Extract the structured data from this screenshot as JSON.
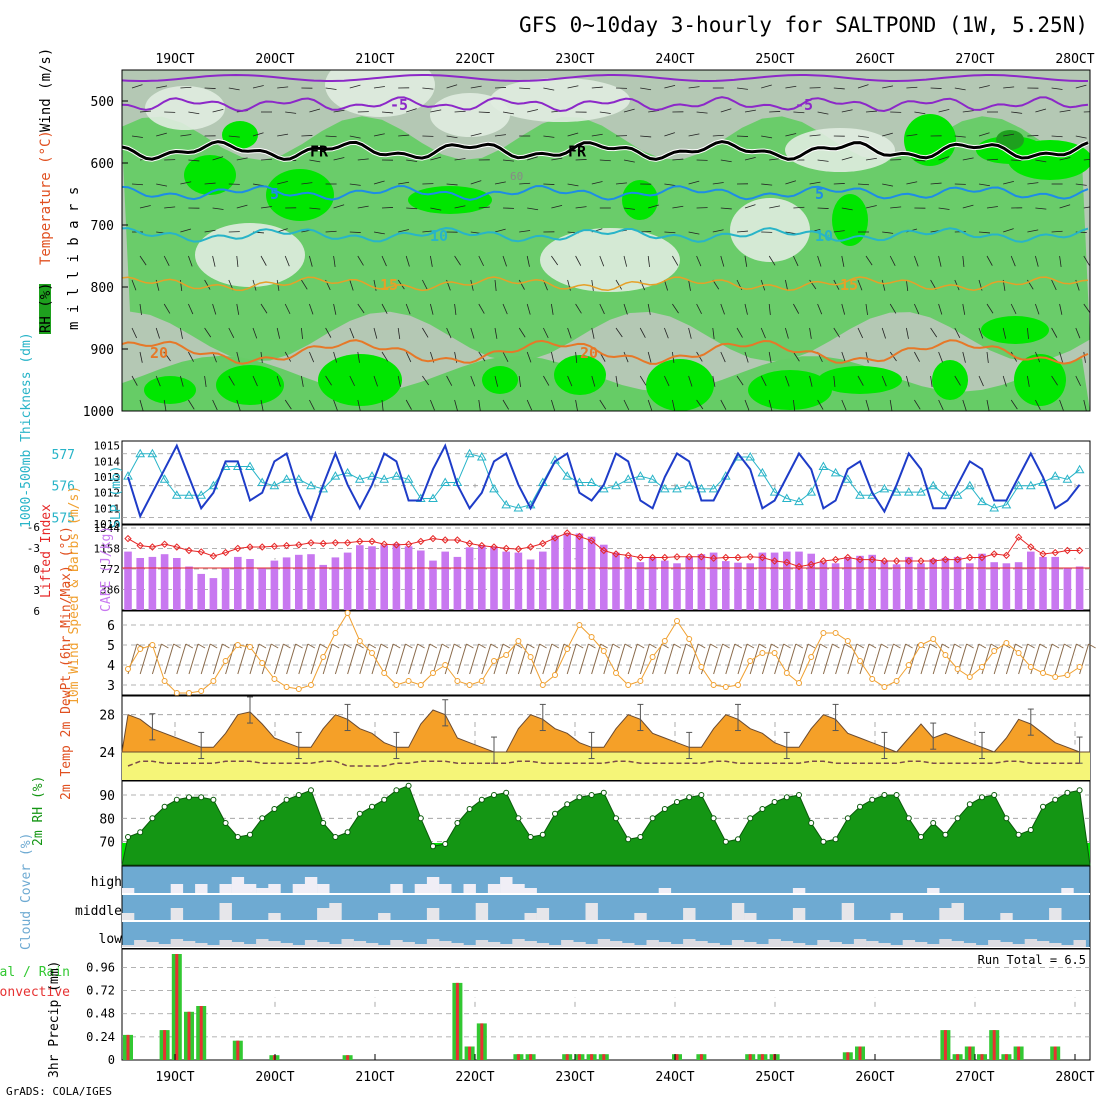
{
  "header": {
    "title": "GFS 0~10day 3-hourly for SALTPOND (1W, 5.25N)",
    "credit": "GrADS: COLA/IGES"
  },
  "colors": {
    "rh_dark": "#1ea01e",
    "rh_mid": "#66cc66",
    "rh_light": "#b4c8b4",
    "cape": "#c878f0",
    "lifted": "#e62828",
    "slp": "#1e3cc8",
    "thickness": "#28b4c8",
    "wind": "#f0a030",
    "temp": "#f5a028",
    "dewpt": "#f5f578",
    "rh2m": "#149614",
    "cloud": "#6eaad2",
    "rain": "#32c832",
    "conv": "#e63232"
  },
  "chart_data": [
    {
      "type": "heatmap",
      "name": "upper-air",
      "ylabel": "m i l l i b a r s",
      "legend_labels": [
        "Wind (m/s)",
        "Temperature (°C)",
        "RH (%)"
      ],
      "x_ticks": [
        "19OCT",
        "20OCT",
        "21OCT",
        "22OCT",
        "23OCT",
        "24OCT",
        "25OCT",
        "26OCT",
        "27OCT",
        "28OCT"
      ],
      "y_ticks": [
        500,
        600,
        700,
        800,
        900,
        1000
      ],
      "ylim": [
        450,
        1000
      ],
      "contour_labels": [
        "-5",
        "-5",
        "FR",
        "FR",
        "5",
        "5",
        "10",
        "10",
        "15",
        "15",
        "20",
        "20",
        "60"
      ],
      "isotherms": [
        {
          "label": "-5",
          "level": 505
        },
        {
          "label": "FR",
          "level": 580
        },
        {
          "label": "5",
          "level": 648
        },
        {
          "label": "10",
          "level": 716
        },
        {
          "label": "15",
          "level": 795
        },
        {
          "label": "20",
          "level": 905
        }
      ]
    },
    {
      "type": "line",
      "name": "slp-thickness",
      "ylabel_left": "1000-500mb Thickness (dm)",
      "ylabel_right": "SLP (mb)",
      "left_ticks": [
        575,
        576,
        577
      ],
      "right_ticks": [
        1010,
        1011,
        1012,
        1013,
        1014,
        1015
      ],
      "ylim_thickness": [
        574.8,
        577.4
      ],
      "ylim_slp": [
        1010,
        1015.3
      ],
      "series": [
        {
          "name": "SLP",
          "axis": "right",
          "values": [
            1013.0,
            1010.5,
            1012.0,
            1013.5,
            1015.0,
            1013.0,
            1011.0,
            1012.0,
            1014.0,
            1014.0,
            1011.5,
            1012.0,
            1014.0,
            1014.5,
            1012.0,
            1010.3,
            1012.5,
            1014.5,
            1012.5,
            1011.0,
            1012.5,
            1014.5,
            1014.0,
            1011.5,
            1011.5,
            1013.5,
            1015.0,
            1012.5,
            1011.0,
            1012.0,
            1014.0,
            1014.5,
            1012.5,
            1011.0,
            1012.5,
            1014.0,
            1014.5,
            1012.0,
            1011.5,
            1012.5,
            1014.5,
            1014.0,
            1011.5,
            1011.0,
            1013.0,
            1014.5,
            1014.0,
            1011.5,
            1011.5,
            1013.0,
            1014.5,
            1013.5,
            1011.0,
            1011.5,
            1013.0,
            1014.5,
            1013.5,
            1011.0,
            1011.5,
            1013.5,
            1014.0,
            1012.0,
            1010.8,
            1012.5,
            1014.5,
            1013.5,
            1011.0,
            1011.0,
            1012.5,
            1014.0,
            1013.5,
            1011.5,
            1011.5,
            1013.0,
            1014.5,
            1013.0,
            1011.0,
            1011.5,
            1012.5
          ]
        },
        {
          "name": "Thickness",
          "axis": "left",
          "values": [
            576.3,
            577.0,
            577.0,
            576.2,
            575.7,
            575.7,
            575.7,
            576.0,
            576.6,
            576.6,
            576.6,
            576.1,
            576.0,
            576.2,
            576.2,
            576.0,
            575.9,
            576.3,
            576.4,
            576.2,
            576.3,
            576.2,
            576.3,
            576.2,
            575.6,
            575.6,
            576.1,
            576.1,
            577.0,
            576.9,
            575.9,
            575.4,
            575.3,
            575.4,
            576.1,
            576.8,
            576.3,
            576.1,
            576.1,
            575.9,
            576.0,
            576.2,
            576.3,
            576.2,
            575.9,
            575.9,
            576.0,
            575.9,
            575.9,
            576.3,
            576.9,
            576.9,
            576.4,
            575.8,
            575.6,
            575.5,
            575.8,
            576.6,
            576.4,
            576.2,
            575.7,
            575.7,
            575.9,
            575.8,
            575.8,
            575.8,
            576.0,
            575.7,
            575.7,
            576.0,
            575.5,
            575.3,
            575.4,
            576.0,
            576.0,
            576.1,
            576.3,
            576.2,
            576.5
          ]
        }
      ]
    },
    {
      "type": "bar",
      "name": "cape-lifted",
      "ylabel_left": "Lifted Index",
      "ylabel_right": "CAPE (J/kg)",
      "li_ticks": [
        "-6",
        "-3",
        "0",
        "3",
        "6"
      ],
      "cape_ticks": [
        386,
        772,
        1158,
        1544
      ],
      "cape_max": 1544,
      "series": [
        {
          "name": "CAPE",
          "values": [
            1100,
            980,
            1000,
            1050,
            980,
            820,
            680,
            600,
            800,
            1000,
            960,
            800,
            930,
            990,
            1040,
            1050,
            850,
            990,
            1080,
            1220,
            1200,
            1220,
            1250,
            1200,
            1120,
            930,
            1100,
            1000,
            1180,
            1220,
            1200,
            1100,
            1080,
            950,
            1100,
            1400,
            1440,
            1440,
            1380,
            1230,
            1080,
            1000,
            900,
            1000,
            930,
            880,
            1000,
            1050,
            1080,
            920,
            890,
            880,
            1080,
            1080,
            1100,
            1100,
            1060,
            900,
            880,
            1000,
            1020,
            1040,
            930,
            860,
            1000,
            880,
            960,
            980,
            1000,
            880,
            1060,
            900,
            880,
            900,
            1100,
            1000,
            1000,
            800,
            820
          ]
        },
        {
          "name": "Lifted Index",
          "values": [
            -4.2,
            -3.2,
            -3.0,
            -3.4,
            -3.0,
            -2.5,
            -2.3,
            -1.7,
            -2.2,
            -2.8,
            -3.0,
            -3.0,
            -3.1,
            -3.2,
            -3.3,
            -3.6,
            -3.5,
            -3.6,
            -3.6,
            -3.8,
            -3.8,
            -3.4,
            -3.3,
            -3.4,
            -3.8,
            -4.2,
            -4.0,
            -4.0,
            -3.5,
            -3.2,
            -3.0,
            -2.8,
            -2.7,
            -3.0,
            -3.5,
            -4.3,
            -5.0,
            -4.5,
            -3.9,
            -2.5,
            -2.0,
            -1.8,
            -1.5,
            -1.5,
            -1.5,
            -1.6,
            -1.6,
            -1.6,
            -1.4,
            -1.5,
            -1.5,
            -1.6,
            -1.5,
            -1.0,
            -0.8,
            -0.2,
            -0.5,
            -1.0,
            -1.2,
            -1.5,
            -1.2,
            -1.2,
            -1.0,
            -1.0,
            -1.0,
            -1.0,
            -1.0,
            -1.2,
            -1.2,
            -1.5,
            -1.5,
            -2.0,
            -1.8,
            -4.4,
            -3.0,
            -2.0,
            -2.2,
            -2.5,
            -2.5
          ]
        }
      ]
    },
    {
      "type": "line",
      "name": "wind10m",
      "ylabel": "10m Wind Speed & Barbs (m/s)",
      "y_ticks": [
        3,
        4,
        5,
        6
      ],
      "ylim": [
        2.5,
        6.7
      ],
      "series": [
        {
          "name": "Wind Speed",
          "values": [
            3.8,
            4.8,
            5.0,
            3.2,
            2.6,
            2.6,
            2.7,
            3.2,
            4.2,
            5.0,
            4.9,
            4.1,
            3.3,
            2.9,
            2.8,
            3.0,
            4.4,
            5.6,
            6.6,
            5.2,
            4.6,
            3.6,
            3.0,
            3.2,
            3.0,
            3.6,
            4.0,
            3.2,
            3.0,
            3.2,
            4.2,
            4.5,
            5.2,
            4.4,
            3.0,
            3.5,
            4.8,
            6.0,
            5.4,
            4.7,
            3.6,
            3.0,
            3.2,
            4.4,
            5.2,
            6.2,
            5.3,
            3.9,
            3.0,
            2.9,
            3.0,
            4.2,
            4.6,
            4.6,
            3.6,
            3.1,
            4.4,
            5.6,
            5.6,
            5.2,
            4.2,
            3.3,
            2.9,
            3.2,
            4.0,
            5.0,
            5.3,
            4.5,
            3.8,
            3.4,
            3.9,
            4.7,
            5.1,
            4.6,
            3.9,
            3.6,
            3.4,
            3.5,
            3.9
          ]
        }
      ]
    },
    {
      "type": "area",
      "name": "temp2m",
      "ylabel": "2m Temp 2m DewPt (6hr Min/Max) (°C)",
      "y_ticks": [
        24,
        28
      ],
      "ylim": [
        21,
        30
      ],
      "series": [
        {
          "name": "Temp",
          "values": [
            28.0,
            27.5,
            26.5,
            26.0,
            25.5,
            25.0,
            24.5,
            24.5,
            26.0,
            28.0,
            28.3,
            27.0,
            25.5,
            25.0,
            24.5,
            24.5,
            26.5,
            28.0,
            27.5,
            26.5,
            26.0,
            25.0,
            24.5,
            24.5,
            27.0,
            28.5,
            28.0,
            25.5,
            25.0,
            24.5,
            24.0,
            24.0,
            26.5,
            28.0,
            27.5,
            26.5,
            26.0,
            25.0,
            24.5,
            24.5,
            26.5,
            28.0,
            27.5,
            26.0,
            25.5,
            25.0,
            24.5,
            24.5,
            26.5,
            28.0,
            27.5,
            26.5,
            26.0,
            25.0,
            24.5,
            24.5,
            26.5,
            28.0,
            27.5,
            26.0,
            25.5,
            25.0,
            24.5,
            24.0,
            25.5,
            27.0,
            25.5,
            26.0,
            25.5,
            25.0,
            24.5,
            24.0,
            25.5,
            27.5,
            27.0,
            26.0,
            25.0,
            24.5,
            24.0
          ]
        },
        {
          "name": "DewPt",
          "values": [
            22.5,
            23.0,
            23.0,
            22.8,
            22.8,
            22.8,
            22.8,
            22.8,
            23.0,
            23.0,
            23.0,
            22.8,
            22.8,
            22.8,
            22.8,
            22.8,
            23.0,
            23.0,
            22.5,
            22.5,
            22.5,
            22.5,
            22.8,
            22.8,
            23.0,
            23.0,
            23.0,
            22.8,
            22.8,
            22.8,
            22.8,
            22.8,
            23.0,
            23.0,
            22.8,
            22.8,
            22.8,
            22.8,
            22.8,
            22.8,
            23.0,
            23.0,
            22.8,
            22.8,
            22.8,
            22.8,
            22.8,
            22.8,
            23.0,
            23.0,
            22.8,
            22.8,
            22.8,
            22.8,
            22.8,
            22.8,
            23.0,
            23.0,
            22.8,
            22.8,
            22.8,
            22.8,
            22.8,
            22.8,
            23.0,
            23.0,
            22.8,
            22.8,
            22.8,
            22.8,
            22.8,
            22.8,
            23.0,
            23.0,
            22.8,
            22.8,
            22.8,
            22.8,
            22.8
          ]
        }
      ]
    },
    {
      "type": "area",
      "name": "rh2m",
      "ylabel": "2m RH (%)",
      "y_ticks": [
        70,
        80,
        90
      ],
      "ylim": [
        60,
        96
      ],
      "series": [
        {
          "name": "RH",
          "values": [
            72,
            74,
            80,
            85,
            88,
            89,
            89,
            88,
            78,
            72,
            73,
            80,
            84,
            88,
            90,
            92,
            78,
            72,
            74,
            82,
            85,
            88,
            92,
            94,
            80,
            68,
            69,
            78,
            84,
            88,
            90,
            91,
            80,
            72,
            73,
            82,
            86,
            89,
            90,
            91,
            80,
            71,
            72,
            80,
            84,
            87,
            89,
            90,
            80,
            70,
            71,
            80,
            84,
            87,
            89,
            90,
            78,
            70,
            71,
            80,
            85,
            88,
            90,
            90,
            80,
            72,
            78,
            73,
            80,
            86,
            89,
            90,
            80,
            73,
            75,
            85,
            88,
            91,
            92
          ]
        }
      ]
    },
    {
      "type": "area",
      "name": "cloud",
      "ylabel": "Cloud Cover (%)",
      "row_labels": [
        "high",
        "middle",
        "low"
      ]
    },
    {
      "type": "bar",
      "name": "precip",
      "ylabel": "3hr Precip (mm)",
      "legend": [
        "Total / Rain",
        "Convective"
      ],
      "annotation": "Run Total = 6.5",
      "y_ticks": [
        "0.24",
        "0.48",
        "0.72",
        "0.96"
      ],
      "ylim": [
        0,
        1.1
      ],
      "x_ticks": [
        "19OCT",
        "20OCT",
        "21OCT",
        "22OCT",
        "23OCT",
        "24OCT",
        "25OCT",
        "26OCT",
        "27OCT",
        "28OCT"
      ],
      "bars": [
        {
          "step": 0,
          "value": 0.26
        },
        {
          "step": 3,
          "value": 0.31
        },
        {
          "step": 4,
          "value": 1.1
        },
        {
          "step": 5,
          "value": 0.5
        },
        {
          "step": 6,
          "value": 0.56
        },
        {
          "step": 9,
          "value": 0.2
        },
        {
          "step": 12,
          "value": 0.05
        },
        {
          "step": 18,
          "value": 0.05
        },
        {
          "step": 27,
          "value": 0.8
        },
        {
          "step": 28,
          "value": 0.14
        },
        {
          "step": 29,
          "value": 0.38
        },
        {
          "step": 32,
          "value": 0.06
        },
        {
          "step": 33,
          "value": 0.06
        },
        {
          "step": 36,
          "value": 0.06
        },
        {
          "step": 37,
          "value": 0.06
        },
        {
          "step": 38,
          "value": 0.06
        },
        {
          "step": 39,
          "value": 0.06
        },
        {
          "step": 45,
          "value": 0.06
        },
        {
          "step": 47,
          "value": 0.06
        },
        {
          "step": 51,
          "value": 0.06
        },
        {
          "step": 52,
          "value": 0.06
        },
        {
          "step": 53,
          "value": 0.06
        },
        {
          "step": 59,
          "value": 0.08
        },
        {
          "step": 60,
          "value": 0.14
        },
        {
          "step": 67,
          "value": 0.31
        },
        {
          "step": 68,
          "value": 0.06
        },
        {
          "step": 69,
          "value": 0.14
        },
        {
          "step": 70,
          "value": 0.06
        },
        {
          "step": 71,
          "value": 0.31
        },
        {
          "step": 72,
          "value": 0.06
        },
        {
          "step": 73,
          "value": 0.14
        },
        {
          "step": 76,
          "value": 0.14
        }
      ]
    }
  ]
}
